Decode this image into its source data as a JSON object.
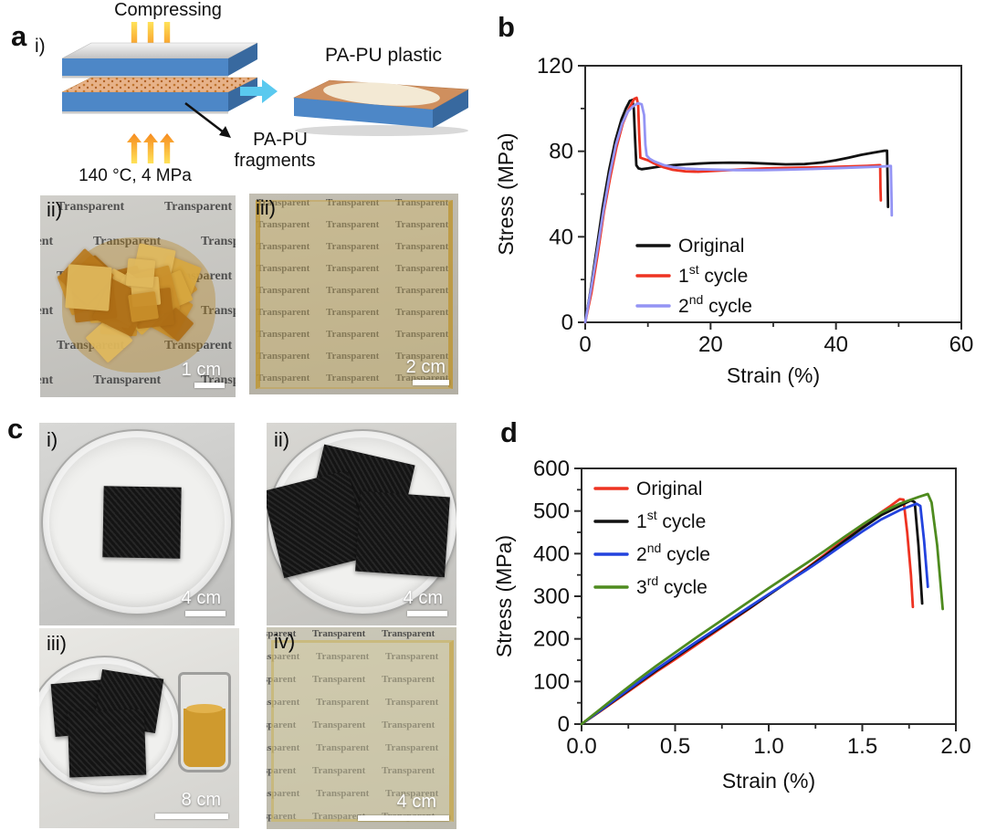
{
  "figure": {
    "watermark_text": "Transparent",
    "fragment_palette": [
      "#c98f2a",
      "#b8791d",
      "#d7a73f",
      "#ad6d15",
      "#e0b95d"
    ],
    "panel_a": {
      "label": "a",
      "step_label": "i)",
      "compressing_label": "Compressing",
      "condition_label": "140 °C, 4 MPa",
      "product_label": "PA-PU plastic",
      "fragments_label_line1": "PA-PU",
      "fragments_label_line2": "fragments",
      "photo_ii": {
        "label": "ii)",
        "scale_bar": "1 cm"
      },
      "photo_iii": {
        "label": "iii)",
        "scale_bar": "2 cm"
      }
    },
    "panel_b": {
      "label": "b"
    },
    "panel_c": {
      "label": "c",
      "photo_i": {
        "label": "i)",
        "scale_bar": "4 cm"
      },
      "photo_ii": {
        "label": "ii)",
        "scale_bar": "4 cm"
      },
      "photo_iii": {
        "label": "iii)",
        "scale_bar": "8 cm"
      },
      "photo_iv": {
        "label": "iv)",
        "scale_bar": "4 cm"
      }
    },
    "panel_d": {
      "label": "d"
    }
  },
  "chart_data": [
    {
      "id": "b",
      "type": "line",
      "title": "",
      "xlabel": "Strain (%)",
      "ylabel": "Stress (MPa)",
      "xlim": [
        0,
        60
      ],
      "ylim": [
        0,
        120
      ],
      "xticks": {
        "values": [
          0,
          20,
          40,
          60
        ],
        "labels": [
          "0",
          "20",
          "40",
          "60"
        ]
      },
      "xminor": [
        10,
        30,
        50
      ],
      "yticks": {
        "values": [
          0,
          40,
          80,
          120
        ],
        "labels": [
          "0",
          "40",
          "80",
          "120"
        ]
      },
      "yminor": [
        20,
        60,
        100
      ],
      "grid": false,
      "legend_position": "inside-lower-middle",
      "series": [
        {
          "name": "Original",
          "label_pre": "Original",
          "label_sup": "",
          "label_post": "",
          "color": "#111111",
          "points": [
            [
              0,
              0
            ],
            [
              0.8,
              14
            ],
            [
              1.8,
              34
            ],
            [
              2.8,
              54
            ],
            [
              3.8,
              71
            ],
            [
              4.8,
              85
            ],
            [
              5.8,
              95
            ],
            [
              6.5,
              100
            ],
            [
              7.1,
              103.5
            ],
            [
              7.5,
              104
            ],
            [
              7.75,
              100
            ],
            [
              7.95,
              86
            ],
            [
              8.15,
              73.5
            ],
            [
              8.5,
              72
            ],
            [
              9,
              71.6
            ],
            [
              10,
              72
            ],
            [
              12,
              72.9
            ],
            [
              14,
              73.5
            ],
            [
              16,
              73.9
            ],
            [
              18,
              74.2
            ],
            [
              20,
              74.5
            ],
            [
              23,
              74.7
            ],
            [
              26,
              74.6
            ],
            [
              29,
              74.2
            ],
            [
              32,
              73.9
            ],
            [
              35,
              74.0
            ],
            [
              38,
              74.8
            ],
            [
              40,
              75.8
            ],
            [
              42,
              77
            ],
            [
              44,
              78.3
            ],
            [
              46,
              79.4
            ],
            [
              47.6,
              80.2
            ],
            [
              48.15,
              80.3
            ],
            [
              48.25,
              65
            ],
            [
              48.3,
              54
            ]
          ]
        },
        {
          "name": "1st cycle",
          "label_pre": "1",
          "label_sup": "st",
          "label_post": " cycle",
          "color": "#ee3322",
          "points": [
            [
              0,
              0
            ],
            [
              1,
              14
            ],
            [
              2,
              32
            ],
            [
              3,
              52
            ],
            [
              4,
              68
            ],
            [
              5,
              82
            ],
            [
              6,
              93
            ],
            [
              7,
              100
            ],
            [
              7.8,
              104.5
            ],
            [
              8.2,
              105
            ],
            [
              8.45,
              102
            ],
            [
              8.6,
              88
            ],
            [
              8.8,
              77
            ],
            [
              9.3,
              76.5
            ],
            [
              10,
              75.8
            ],
            [
              11,
              74.3
            ],
            [
              12.5,
              72.5
            ],
            [
              14,
              71.3
            ],
            [
              16,
              70.6
            ],
            [
              18,
              70.4
            ],
            [
              20,
              70.7
            ],
            [
              23,
              71.2
            ],
            [
              26,
              71.7
            ],
            [
              30,
              72.1
            ],
            [
              34,
              72.3
            ],
            [
              38,
              72.5
            ],
            [
              42,
              72.9
            ],
            [
              45,
              73.2
            ],
            [
              46.9,
              73.5
            ],
            [
              47.05,
              73.5
            ],
            [
              47.1,
              63
            ],
            [
              47.15,
              57
            ]
          ]
        },
        {
          "name": "2nd cycle",
          "label_pre": "2",
          "label_sup": "nd",
          "label_post": " cycle",
          "color": "#9494f4",
          "points": [
            [
              0,
              0
            ],
            [
              0.9,
              15
            ],
            [
              1.9,
              33
            ],
            [
              2.9,
              52
            ],
            [
              3.9,
              69
            ],
            [
              4.9,
              83
            ],
            [
              5.9,
              93
            ],
            [
              6.8,
              98.5
            ],
            [
              7.6,
              101
            ],
            [
              8.4,
              102.5
            ],
            [
              9.0,
              102
            ],
            [
              9.4,
              97
            ],
            [
              9.6,
              83
            ],
            [
              9.8,
              78
            ],
            [
              10.3,
              76.5
            ],
            [
              11,
              75.3
            ],
            [
              12.5,
              73.6
            ],
            [
              14,
              72.6
            ],
            [
              16,
              71.9
            ],
            [
              18,
              71.6
            ],
            [
              20,
              71.5
            ],
            [
              24,
              71.2
            ],
            [
              28,
              71.2
            ],
            [
              32,
              71.4
            ],
            [
              36,
              71.7
            ],
            [
              40,
              72.1
            ],
            [
              44,
              72.5
            ],
            [
              47,
              72.8
            ],
            [
              48.6,
              73.1
            ],
            [
              48.75,
              73.1
            ],
            [
              48.85,
              60
            ],
            [
              48.9,
              50
            ]
          ]
        }
      ]
    },
    {
      "id": "d",
      "type": "line",
      "title": "",
      "xlabel": "Strain (%)",
      "ylabel": "Stress (MPa)",
      "xlim": [
        0,
        2
      ],
      "ylim": [
        0,
        600
      ],
      "xticks": {
        "values": [
          0,
          0.5,
          1.0,
          1.5,
          2.0
        ],
        "labels": [
          "0.0",
          "0.5",
          "1.0",
          "1.5",
          "2.0"
        ]
      },
      "xminor": [
        0.25,
        0.75,
        1.25,
        1.75
      ],
      "yticks": {
        "values": [
          0,
          100,
          200,
          300,
          400,
          500,
          600
        ],
        "labels": [
          "0",
          "100",
          "200",
          "300",
          "400",
          "500",
          "600"
        ]
      },
      "yminor": [
        50,
        150,
        250,
        350,
        450,
        550
      ],
      "grid": false,
      "legend_position": "inside-upper-left",
      "series": [
        {
          "name": "Original",
          "label_pre": "Original",
          "label_sup": "",
          "label_post": "",
          "color": "#ee3322",
          "points": [
            [
              0,
              0
            ],
            [
              0.1,
              30
            ],
            [
              0.2,
              61
            ],
            [
              0.3,
              92
            ],
            [
              0.4,
              123
            ],
            [
              0.5,
              152
            ],
            [
              0.6,
              182
            ],
            [
              0.7,
              212
            ],
            [
              0.8,
              242
            ],
            [
              0.9,
              272
            ],
            [
              1.0,
              303
            ],
            [
              1.1,
              334
            ],
            [
              1.2,
              365
            ],
            [
              1.3,
              398
            ],
            [
              1.4,
              432
            ],
            [
              1.5,
              465
            ],
            [
              1.6,
              497
            ],
            [
              1.65,
              512
            ],
            [
              1.7,
              528
            ],
            [
              1.72,
              527
            ],
            [
              1.74,
              450
            ],
            [
              1.76,
              350
            ],
            [
              1.77,
              275
            ]
          ]
        },
        {
          "name": "1st cycle",
          "label_pre": "1",
          "label_sup": "st",
          "label_post": " cycle",
          "color": "#111111",
          "points": [
            [
              0,
              0
            ],
            [
              0.1,
              31
            ],
            [
              0.2,
              63
            ],
            [
              0.3,
              95
            ],
            [
              0.4,
              126
            ],
            [
              0.5,
              156
            ],
            [
              0.6,
              186
            ],
            [
              0.7,
              215
            ],
            [
              0.8,
              244
            ],
            [
              0.9,
              273
            ],
            [
              1.0,
              303
            ],
            [
              1.1,
              333
            ],
            [
              1.2,
              363
            ],
            [
              1.3,
              395
            ],
            [
              1.4,
              428
            ],
            [
              1.5,
              460
            ],
            [
              1.6,
              490
            ],
            [
              1.7,
              512
            ],
            [
              1.76,
              525
            ],
            [
              1.78,
              521
            ],
            [
              1.8,
              420
            ],
            [
              1.82,
              283
            ]
          ]
        },
        {
          "name": "2nd cycle",
          "label_pre": "2",
          "label_sup": "nd",
          "label_post": " cycle",
          "color": "#2343de",
          "points": [
            [
              0,
              0
            ],
            [
              0.1,
              32
            ],
            [
              0.2,
              65
            ],
            [
              0.3,
              97
            ],
            [
              0.4,
              129
            ],
            [
              0.5,
              159
            ],
            [
              0.6,
              189
            ],
            [
              0.7,
              218
            ],
            [
              0.8,
              247
            ],
            [
              0.9,
              276
            ],
            [
              1.0,
              305
            ],
            [
              1.1,
              333
            ],
            [
              1.2,
              361
            ],
            [
              1.3,
              391
            ],
            [
              1.4,
              422
            ],
            [
              1.5,
              452
            ],
            [
              1.6,
              480
            ],
            [
              1.7,
              502
            ],
            [
              1.79,
              517
            ],
            [
              1.81,
              512
            ],
            [
              1.83,
              430
            ],
            [
              1.85,
              322
            ]
          ]
        },
        {
          "name": "3rd cycle",
          "label_pre": "3",
          "label_sup": "rd",
          "label_post": " cycle",
          "color": "#4e8b1f",
          "points": [
            [
              0,
              0
            ],
            [
              0.1,
              35
            ],
            [
              0.2,
              70
            ],
            [
              0.3,
              104
            ],
            [
              0.4,
              137
            ],
            [
              0.5,
              168
            ],
            [
              0.6,
              199
            ],
            [
              0.7,
              229
            ],
            [
              0.8,
              259
            ],
            [
              0.9,
              289
            ],
            [
              1.0,
              319
            ],
            [
              1.1,
              348
            ],
            [
              1.2,
              377
            ],
            [
              1.3,
              407
            ],
            [
              1.4,
              438
            ],
            [
              1.5,
              468
            ],
            [
              1.6,
              496
            ],
            [
              1.7,
              517
            ],
            [
              1.8,
              533
            ],
            [
              1.85,
              540
            ],
            [
              1.87,
              520
            ],
            [
              1.9,
              420
            ],
            [
              1.93,
              270
            ]
          ]
        }
      ]
    }
  ]
}
